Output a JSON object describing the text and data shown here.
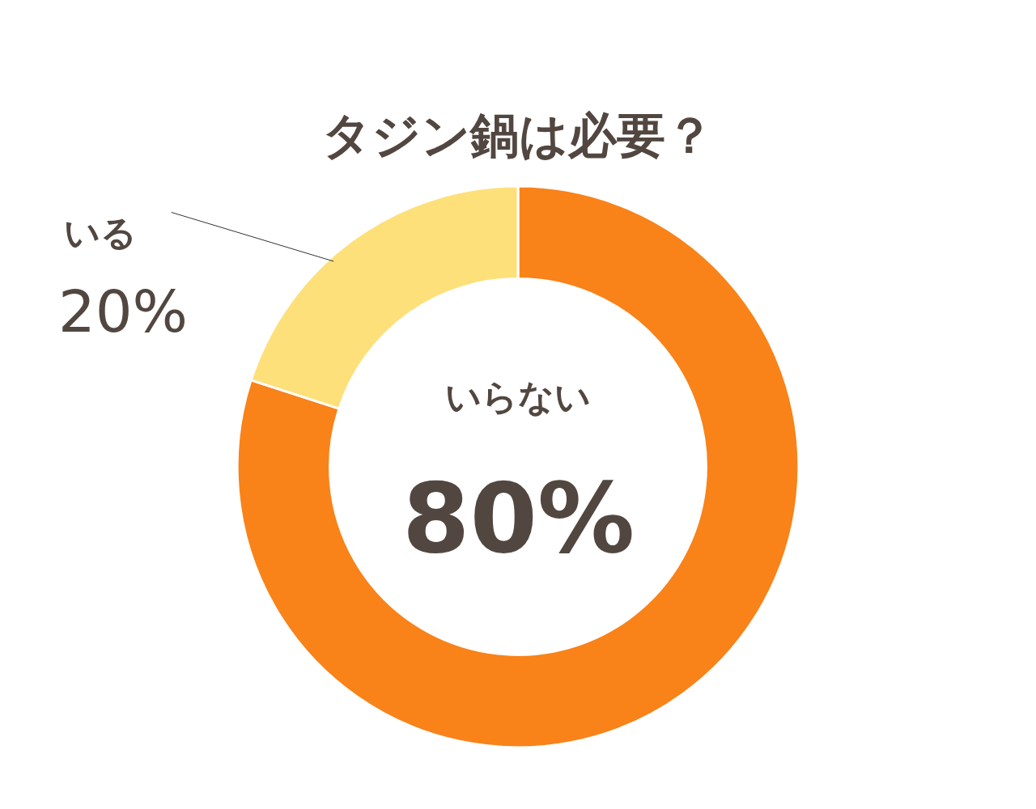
{
  "chart_data": {
    "type": "donut",
    "title": "タジン鍋は必要？",
    "categories": [
      "いらない",
      "いる"
    ],
    "values": [
      80,
      20
    ],
    "colors": [
      "#f98219",
      "#fde07a"
    ],
    "value_labels": [
      "80%",
      "20%"
    ],
    "legend": false
  }
}
